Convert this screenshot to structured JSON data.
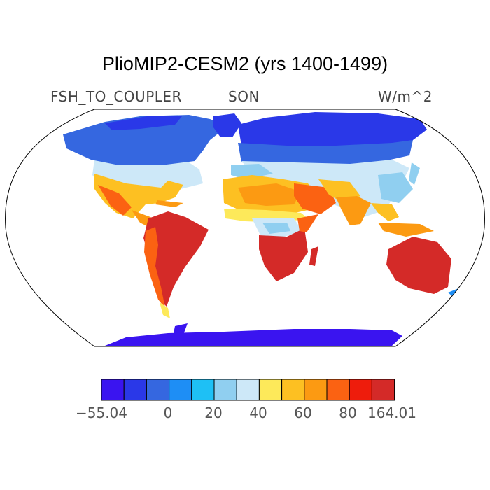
{
  "title": "PlioMIP2-CESM2 (yrs 1400-1499)",
  "variable": "FSH_TO_COUPLER",
  "season": "SON",
  "units": "W/m^2",
  "projection": "Robinson",
  "colorbar": {
    "colors": [
      "#3a14f0",
      "#2a38e8",
      "#3567e0",
      "#1e8ef5",
      "#1ec0f5",
      "#90cff0",
      "#cde8f8",
      "#fde95a",
      "#fdc022",
      "#fc9a12",
      "#fb6212",
      "#ee1c0c",
      "#d42a28"
    ],
    "tick_labels": [
      "−55.04",
      "0",
      "20",
      "40",
      "60",
      "80",
      "164.01"
    ]
  },
  "colors": {
    "outline": "#000000",
    "ocean": "#ffffff"
  }
}
